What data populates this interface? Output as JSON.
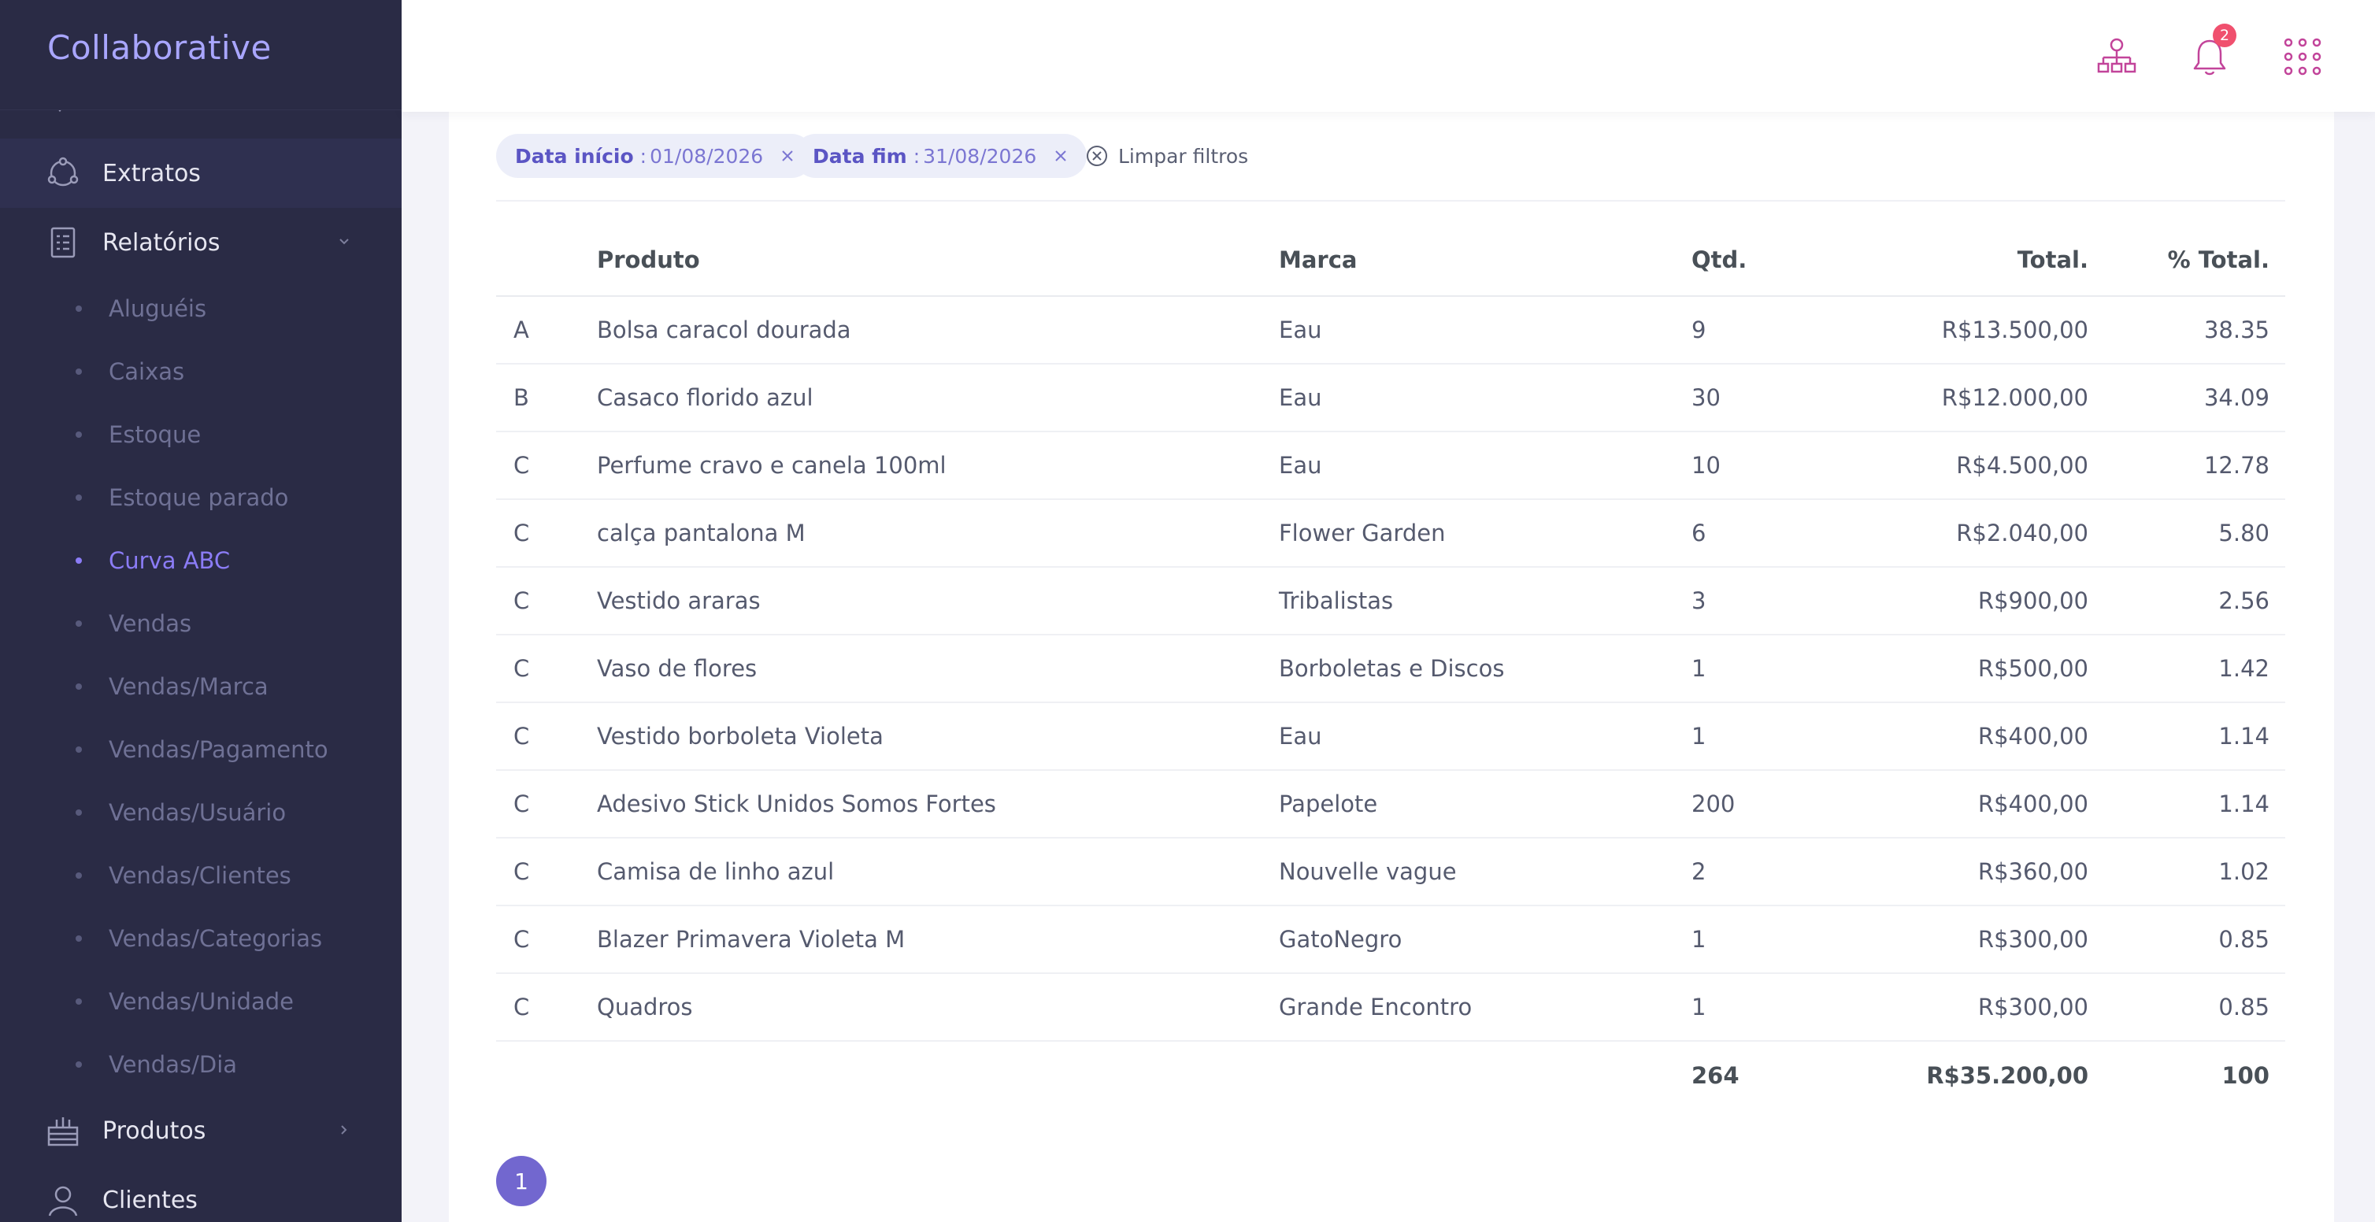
{
  "app": {
    "brand": "Collaborative"
  },
  "sidebar": {
    "items": [
      {
        "label": "Extratos",
        "icon": "extratos-icon"
      },
      {
        "label": "Relatórios",
        "icon": "reports-icon"
      },
      {
        "label": "Produtos",
        "icon": "products-icon"
      },
      {
        "label": "Clientes",
        "icon": "clients-icon"
      }
    ],
    "reports_sub": [
      "Aluguéis",
      "Caixas",
      "Estoque",
      "Estoque parado",
      "Curva ABC",
      "Vendas",
      "Vendas/Marca",
      "Vendas/Pagamento",
      "Vendas/Usuário",
      "Vendas/Clientes",
      "Vendas/Categorias",
      "Vendas/Unidade",
      "Vendas/Dia"
    ],
    "active_sub": "Curva ABC"
  },
  "topbar": {
    "notifications_count": "2",
    "icons": [
      "org-chart-icon",
      "bell-icon",
      "apps-grid-icon"
    ],
    "accent_color": "#c2449a"
  },
  "filters": {
    "chips": [
      {
        "key": "Data início",
        "sep": ":",
        "value": "01/08/2026"
      },
      {
        "key": "Data fim",
        "sep": ":",
        "value": "31/08/2026"
      }
    ],
    "clear_label": "Limpar filtros"
  },
  "table": {
    "headers": {
      "cls": "",
      "produto": "Produto",
      "marca": "Marca",
      "qtd": "Qtd.",
      "total": "Total.",
      "pct": "% Total."
    },
    "rows": [
      {
        "cls": "A",
        "produto": "Bolsa caracol dourada",
        "marca": "Eau",
        "qtd": "9",
        "total": "R$13.500,00",
        "pct": "38.35"
      },
      {
        "cls": "B",
        "produto": "Casaco florido azul",
        "marca": "Eau",
        "qtd": "30",
        "total": "R$12.000,00",
        "pct": "34.09"
      },
      {
        "cls": "C",
        "produto": "Perfume cravo e canela 100ml",
        "marca": "Eau",
        "qtd": "10",
        "total": "R$4.500,00",
        "pct": "12.78"
      },
      {
        "cls": "C",
        "produto": "calça pantalona M",
        "marca": "Flower Garden",
        "qtd": "6",
        "total": "R$2.040,00",
        "pct": "5.80"
      },
      {
        "cls": "C",
        "produto": "Vestido araras",
        "marca": "Tribalistas",
        "qtd": "3",
        "total": "R$900,00",
        "pct": "2.56"
      },
      {
        "cls": "C",
        "produto": "Vaso de flores",
        "marca": "Borboletas e Discos",
        "qtd": "1",
        "total": "R$500,00",
        "pct": "1.42"
      },
      {
        "cls": "C",
        "produto": "Vestido borboleta Violeta",
        "marca": "Eau",
        "qtd": "1",
        "total": "R$400,00",
        "pct": "1.14"
      },
      {
        "cls": "C",
        "produto": "Adesivo Stick Unidos Somos Fortes",
        "marca": "Papelote",
        "qtd": "200",
        "total": "R$400,00",
        "pct": "1.14"
      },
      {
        "cls": "C",
        "produto": "Camisa de linho azul",
        "marca": "Nouvelle vague",
        "qtd": "2",
        "total": "R$360,00",
        "pct": "1.02"
      },
      {
        "cls": "C",
        "produto": "Blazer Primavera Violeta M",
        "marca": "GatoNegro",
        "qtd": "1",
        "total": "R$300,00",
        "pct": "0.85"
      },
      {
        "cls": "C",
        "produto": "Quadros",
        "marca": "Grande Encontro",
        "qtd": "1",
        "total": "R$300,00",
        "pct": "0.85"
      }
    ],
    "totals": {
      "qtd": "264",
      "total": "R$35.200,00",
      "pct": "100"
    }
  },
  "pagination": {
    "current_page": "1"
  }
}
